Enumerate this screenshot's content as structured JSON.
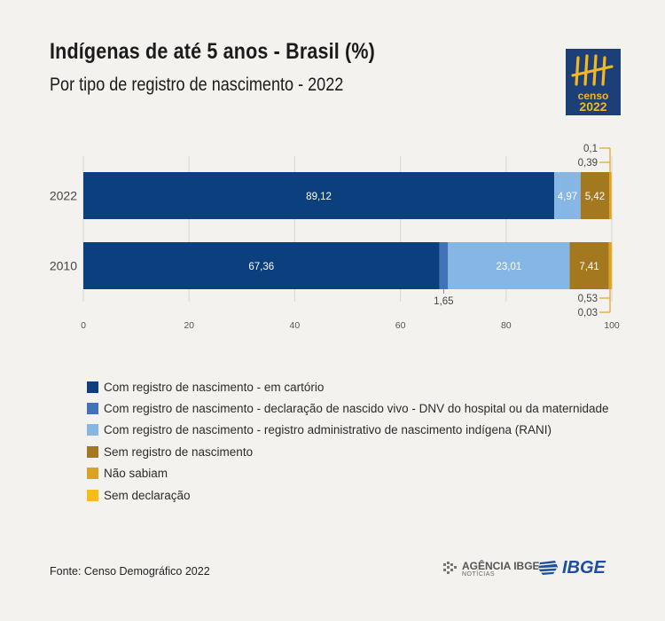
{
  "header": {
    "title": "Indígenas de até 5 anos - Brasil (%)",
    "subtitle": "Por tipo de registro de nascimento - 2022"
  },
  "logo": {
    "line1": "censo",
    "line2": "2022",
    "icon": "tally-marks-icon"
  },
  "chart_data": {
    "type": "bar",
    "orientation": "horizontal",
    "stacked": true,
    "categories": [
      "2022",
      "2010"
    ],
    "series": [
      {
        "name": "Com registro de nascimento - em cartório",
        "color": "#0b3f7e",
        "values": [
          89.12,
          67.36
        ],
        "labels": [
          "89,12",
          "67,36"
        ]
      },
      {
        "name": "Com registro de nascimento - declaração de nascido vivo - DNV do hospital ou da maternidade",
        "color": "#4373b7",
        "values": [
          0,
          1.65
        ],
        "labels": [
          "",
          "1,65"
        ]
      },
      {
        "name": "Com registro de nascimento - registro administrativo de nascimento indígena (RANI)",
        "color": "#85b6e4",
        "values": [
          4.97,
          23.01
        ],
        "labels": [
          "4,97",
          "23,01"
        ]
      },
      {
        "name": "Sem registro de nascimento",
        "color": "#a4781f",
        "values": [
          5.42,
          7.41
        ],
        "labels": [
          "5,42",
          "7,41"
        ]
      },
      {
        "name": "Não sabiam",
        "color": "#dca225",
        "values": [
          0.39,
          0.53
        ],
        "labels": [
          "0,39",
          "0,53"
        ]
      },
      {
        "name": "Sem declaração",
        "color": "#f6bd1a",
        "values": [
          0.1,
          0.03
        ],
        "labels": [
          "0,1",
          "0,03"
        ]
      }
    ],
    "xlim": [
      0,
      100
    ],
    "xticks": [
      "0",
      "20",
      "40",
      "60",
      "80",
      "100"
    ],
    "grid": true,
    "legend_position": "bottom"
  },
  "footer": {
    "source": "Fonte: Censo Demográfico 2022",
    "agencia_line1": "AGÊNCIA IBGE",
    "agencia_line2": "NOTÍCIAS",
    "ibge": "IBGE"
  }
}
